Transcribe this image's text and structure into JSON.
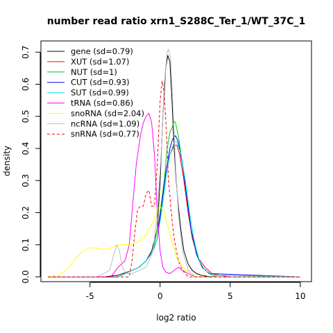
{
  "chart_data": {
    "type": "line",
    "title": "number read ratio xrn1_S288C_Ter_1/WT_37C_1",
    "xlabel": "log2 ratio",
    "ylabel": "density",
    "xlim": [
      -8.5,
      10.8
    ],
    "ylim": [
      -0.015,
      0.735
    ],
    "xticks": [
      -5,
      0,
      5,
      10
    ],
    "yticks": [
      0.0,
      0.1,
      0.2,
      0.3,
      0.4,
      0.5,
      0.6,
      0.7
    ],
    "ytick_labels": [
      "0.0",
      "0.1",
      "0.2",
      "0.3",
      "0.4",
      "0.5",
      "0.6",
      "0.7"
    ],
    "grid": false,
    "legend_position": "top-left",
    "series": [
      {
        "name": "gene (sd=0.79)",
        "color": "#000000",
        "dash": "solid",
        "x": [
          -8,
          -4,
          -3,
          -2,
          -1.5,
          -1,
          -0.6,
          -0.2,
          0,
          0.2,
          0.4,
          0.55,
          0.7,
          0.85,
          1.0,
          1.15,
          1.3,
          1.5,
          1.7,
          2.0,
          2.3,
          2.6,
          3.0,
          3.5,
          4.5,
          10
        ],
        "y": [
          0,
          0,
          0.005,
          0.02,
          0.03,
          0.05,
          0.08,
          0.15,
          0.3,
          0.5,
          0.65,
          0.69,
          0.67,
          0.55,
          0.4,
          0.3,
          0.22,
          0.14,
          0.08,
          0.04,
          0.02,
          0.01,
          0.004,
          0.001,
          0,
          0
        ]
      },
      {
        "name": "XUT (sd=1.07)",
        "color": "#ff0000",
        "dash": "solid",
        "x": [
          -8,
          -3,
          -2,
          -1.5,
          -1,
          -0.5,
          -0.2,
          0,
          0.3,
          0.6,
          0.8,
          1.0,
          1.2,
          1.4,
          1.7,
          2.0,
          2.3,
          2.7,
          3.2,
          3.7,
          4.2,
          5,
          10
        ],
        "y": [
          0,
          0,
          0.02,
          0.03,
          0.05,
          0.08,
          0.12,
          0.2,
          0.3,
          0.37,
          0.39,
          0.41,
          0.41,
          0.38,
          0.3,
          0.2,
          0.12,
          0.06,
          0.03,
          0.01,
          0.005,
          0,
          0
        ]
      },
      {
        "name": "NUT (sd=1)",
        "color": "#00cd00",
        "dash": "solid",
        "x": [
          -8,
          -3,
          -2,
          -1.5,
          -1,
          -0.5,
          0,
          0.3,
          0.5,
          0.7,
          0.9,
          1.0,
          1.1,
          1.3,
          1.6,
          1.9,
          2.2,
          2.6,
          3.0,
          3.5,
          4.0,
          10
        ],
        "y": [
          0,
          0,
          0.02,
          0.03,
          0.05,
          0.08,
          0.2,
          0.3,
          0.4,
          0.45,
          0.47,
          0.485,
          0.48,
          0.44,
          0.35,
          0.25,
          0.15,
          0.07,
          0.03,
          0.01,
          0,
          0
        ]
      },
      {
        "name": "CUT (sd=0.93)",
        "color": "#0000ff",
        "dash": "solid",
        "x": [
          -8,
          -3,
          -2,
          -1.5,
          -1,
          -0.5,
          -0.2,
          0.1,
          0.4,
          0.7,
          0.9,
          1.1,
          1.3,
          1.6,
          1.9,
          2.2,
          2.6,
          3.0,
          3.5,
          10
        ],
        "y": [
          0,
          0,
          0.02,
          0.03,
          0.05,
          0.08,
          0.12,
          0.22,
          0.32,
          0.4,
          0.43,
          0.44,
          0.42,
          0.35,
          0.25,
          0.15,
          0.07,
          0.03,
          0.01,
          0
        ]
      },
      {
        "name": "SUT (sd=0.99)",
        "color": "#00e5e5",
        "dash": "solid",
        "x": [
          -8,
          -3,
          -2,
          -1.5,
          -1,
          -0.5,
          -0.2,
          0.1,
          0.4,
          0.7,
          1.0,
          1.2,
          1.5,
          1.8,
          2.1,
          2.4,
          2.8,
          3.2,
          3.8,
          10
        ],
        "y": [
          0,
          0,
          0.02,
          0.03,
          0.05,
          0.08,
          0.12,
          0.2,
          0.3,
          0.38,
          0.42,
          0.42,
          0.38,
          0.3,
          0.2,
          0.12,
          0.05,
          0.02,
          0.005,
          0
        ]
      },
      {
        "name": "tRNA (sd=0.86)",
        "color": "#ff00ff",
        "dash": "solid",
        "x": [
          -8,
          -3.5,
          -3,
          -2.5,
          -2.2,
          -2.0,
          -1.7,
          -1.4,
          -1.2,
          -1.0,
          -0.8,
          -0.6,
          -0.4,
          -0.2,
          0.0,
          0.2,
          0.4,
          0.7,
          1.0,
          1.3,
          1.6,
          2.0,
          2.5,
          10
        ],
        "y": [
          0,
          0,
          0.03,
          0.05,
          0.1,
          0.2,
          0.35,
          0.44,
          0.48,
          0.5,
          0.51,
          0.48,
          0.38,
          0.2,
          0.08,
          0.03,
          0.015,
          0.01,
          0.02,
          0.03,
          0.02,
          0.01,
          0,
          0
        ]
      },
      {
        "name": "snoRNA (sd=2.04)",
        "color": "#ffff00",
        "dash": "solid",
        "x": [
          -8,
          -7.2,
          -6.5,
          -6.0,
          -5.5,
          -5.0,
          -4.5,
          -4.0,
          -3.5,
          -3.0,
          -2.5,
          -2.0,
          -1.5,
          -1.0,
          -0.5,
          -0.2,
          0.0,
          0.3,
          0.6,
          0.9,
          1.2,
          1.6,
          2.0,
          2.5,
          3.0,
          10
        ],
        "y": [
          0,
          0.005,
          0.03,
          0.06,
          0.08,
          0.09,
          0.09,
          0.085,
          0.09,
          0.1,
          0.1,
          0.1,
          0.11,
          0.13,
          0.17,
          0.21,
          0.22,
          0.2,
          0.15,
          0.1,
          0.06,
          0.03,
          0.015,
          0.005,
          0,
          0
        ]
      },
      {
        "name": "ncRNA (sd=1.09)",
        "color": "#bebebe",
        "dash": "solid",
        "x": [
          -8,
          -4.5,
          -3.6,
          -3.3,
          -3.1,
          -2.9,
          -2.7,
          -2.4,
          -2.0,
          -1.5,
          -1.0,
          -0.5,
          -0.2,
          0.1,
          0.3,
          0.5,
          0.6,
          0.75,
          0.9,
          1.1,
          1.3,
          1.6,
          2.0,
          2.5,
          10
        ],
        "y": [
          0,
          0,
          0.02,
          0.07,
          0.1,
          0.08,
          0.03,
          0.01,
          0.01,
          0.02,
          0.03,
          0.08,
          0.2,
          0.4,
          0.6,
          0.7,
          0.71,
          0.68,
          0.55,
          0.35,
          0.2,
          0.08,
          0.02,
          0,
          0
        ]
      },
      {
        "name": "snRNA (sd=0.77)",
        "color": "#ff0000",
        "dash": "dashed",
        "x": [
          -8,
          -2.2,
          -2.0,
          -1.8,
          -1.6,
          -1.4,
          -1.2,
          -1.0,
          -0.8,
          -0.6,
          -0.4,
          -0.2,
          0.0,
          0.15,
          0.3,
          0.45,
          0.6,
          0.8,
          1.0,
          1.3,
          1.6,
          2.0,
          10
        ],
        "y": [
          0,
          0,
          0.05,
          0.14,
          0.21,
          0.22,
          0.22,
          0.26,
          0.27,
          0.22,
          0.22,
          0.35,
          0.55,
          0.61,
          0.57,
          0.45,
          0.3,
          0.2,
          0.12,
          0.05,
          0.02,
          0,
          0
        ]
      }
    ]
  }
}
